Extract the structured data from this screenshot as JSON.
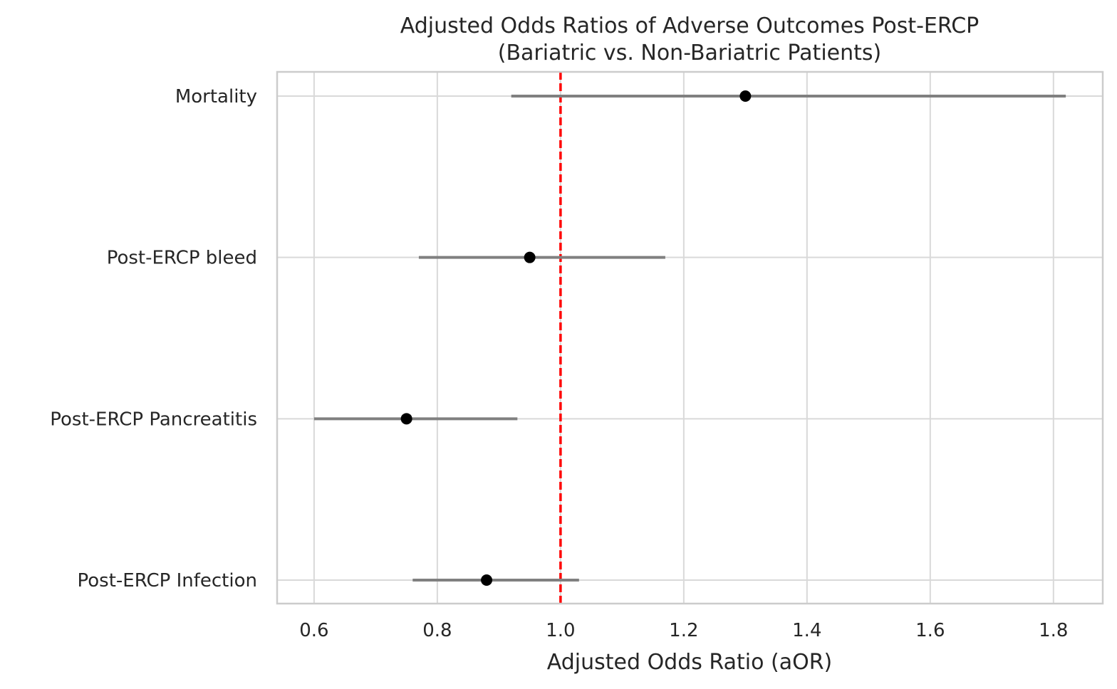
{
  "chart_data": {
    "type": "forest",
    "title_lines": [
      "Adjusted Odds Ratios of Adverse Outcomes Post-ERCP",
      "(Bariatric vs. Non-Bariatric Patients)"
    ],
    "xlabel": "Adjusted Odds Ratio (aOR)",
    "ylabel": "",
    "xlim": [
      0.54,
      1.88
    ],
    "xticks": [
      0.6,
      0.8,
      1.0,
      1.2,
      1.4,
      1.6,
      1.8
    ],
    "xtick_labels": [
      "0.6",
      "0.8",
      "1.0",
      "1.2",
      "1.4",
      "1.6",
      "1.8"
    ],
    "reference_line": {
      "value": 1.0,
      "color": "#ff0000",
      "style": "dashed"
    },
    "grid": true,
    "categories": [
      "Mortality",
      "Post-ERCP bleed",
      "Post-ERCP Pancreatitis",
      "Post-ERCP Infection"
    ],
    "series": [
      {
        "estimates": [
          1.3,
          0.95,
          0.75,
          0.88
        ],
        "ci_lower": [
          0.92,
          0.77,
          0.6,
          0.76
        ],
        "ci_upper": [
          1.82,
          1.17,
          0.93,
          1.03
        ]
      }
    ],
    "colors": {
      "point": "#000000",
      "ci_line": "#808080",
      "grid": "#d9d9d9",
      "frame": "#cccccc"
    }
  }
}
